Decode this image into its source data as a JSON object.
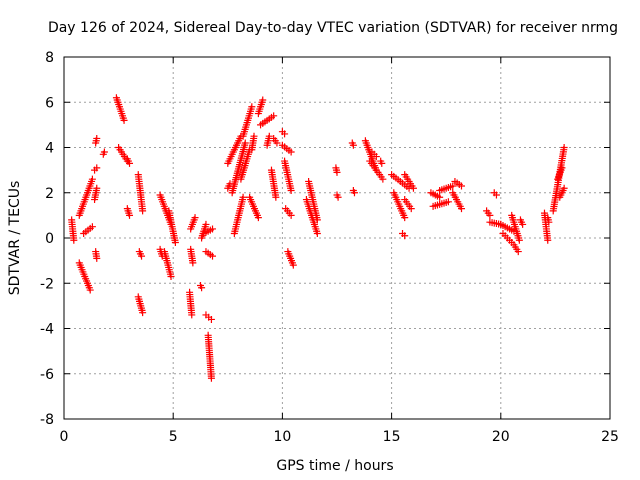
{
  "chart_data": {
    "type": "scatter",
    "title": "Day 126 of 2024, Sidereal Day-to-day VTEC variation (SDTVAR) for receiver nrmg",
    "xlabel": "GPS time / hours",
    "ylabel": "SDTVAR / TECUs",
    "xlim": [
      0,
      25
    ],
    "ylim": [
      -8,
      8
    ],
    "xticks": [
      0,
      5,
      10,
      15,
      20,
      25
    ],
    "yticks": [
      -8,
      -6,
      -4,
      -2,
      0,
      2,
      4,
      6,
      8
    ],
    "grid": true,
    "marker": "+",
    "color": "#ff0000",
    "series": [
      {
        "name": "SDTVAR",
        "tracks": [
          {
            "x": [
              0.35,
              0.45
            ],
            "y": [
              0.8,
              -0.1
            ]
          },
          {
            "x": [
              0.7,
              1.2
            ],
            "y": [
              -1.1,
              -2.3
            ]
          },
          {
            "x": [
              0.7,
              1.3
            ],
            "y": [
              1.0,
              2.6
            ]
          },
          {
            "x": [
              0.9,
              1.3
            ],
            "y": [
              0.2,
              0.5
            ]
          },
          {
            "x": [
              1.45,
              1.5
            ],
            "y": [
              -0.6,
              -0.9
            ]
          },
          {
            "x": [
              1.4,
              1.5
            ],
            "y": [
              1.7,
              2.2
            ]
          },
          {
            "x": [
              1.4,
              1.5
            ],
            "y": [
              3.0,
              3.1
            ]
          },
          {
            "x": [
              1.45,
              1.5
            ],
            "y": [
              4.2,
              4.4
            ]
          },
          {
            "x": [
              1.8,
              1.85
            ],
            "y": [
              3.7,
              3.8
            ]
          },
          {
            "x": [
              2.4,
              2.75
            ],
            "y": [
              6.2,
              5.2
            ]
          },
          {
            "x": [
              2.5,
              2.9
            ],
            "y": [
              4.0,
              3.4
            ]
          },
          {
            "x": [
              2.9,
              3.0
            ],
            "y": [
              3.5,
              3.3
            ]
          },
          {
            "x": [
              2.9,
              3.0
            ],
            "y": [
              1.3,
              1.0
            ]
          },
          {
            "x": [
              3.4,
              3.6
            ],
            "y": [
              -2.6,
              -3.3
            ]
          },
          {
            "x": [
              3.4,
              3.6
            ],
            "y": [
              2.8,
              1.2
            ]
          },
          {
            "x": [
              3.45,
              3.55
            ],
            "y": [
              -0.6,
              -0.8
            ]
          },
          {
            "x": [
              4.4,
              4.9
            ],
            "y": [
              1.9,
              0.6
            ]
          },
          {
            "x": [
              4.8,
              5.1
            ],
            "y": [
              1.2,
              -0.2
            ]
          },
          {
            "x": [
              4.4,
              4.5
            ],
            "y": [
              -0.5,
              -0.8
            ]
          },
          {
            "x": [
              4.6,
              4.9
            ],
            "y": [
              -0.6,
              -1.7
            ]
          },
          {
            "x": [
              5.8,
              5.9
            ],
            "y": [
              -0.5,
              -1.1
            ]
          },
          {
            "x": [
              5.75,
              5.85
            ],
            "y": [
              -2.4,
              -3.4
            ]
          },
          {
            "x": [
              5.8,
              6.0
            ],
            "y": [
              0.4,
              0.9
            ]
          },
          {
            "x": [
              6.25,
              6.3
            ],
            "y": [
              -2.1,
              -2.2
            ]
          },
          {
            "x": [
              6.3,
              6.5
            ],
            "y": [
              0.0,
              0.6
            ]
          },
          {
            "x": [
              6.4,
              6.8
            ],
            "y": [
              0.2,
              0.4
            ]
          },
          {
            "x": [
              6.5,
              6.8
            ],
            "y": [
              -0.6,
              -0.8
            ]
          },
          {
            "x": [
              6.5,
              6.75
            ],
            "y": [
              -3.4,
              -3.6
            ]
          },
          {
            "x": [
              6.6,
              6.75
            ],
            "y": [
              -4.3,
              -6.2
            ]
          },
          {
            "x": [
              7.5,
              8.1
            ],
            "y": [
              3.3,
              4.5
            ]
          },
          {
            "x": [
              7.5,
              7.6
            ],
            "y": [
              2.2,
              2.4
            ]
          },
          {
            "x": [
              7.7,
              8.3
            ],
            "y": [
              2.0,
              4.2
            ]
          },
          {
            "x": [
              7.8,
              8.2
            ],
            "y": [
              0.2,
              1.8
            ]
          },
          {
            "x": [
              8.2,
              8.6
            ],
            "y": [
              4.5,
              5.8
            ]
          },
          {
            "x": [
              8.1,
              8.5
            ],
            "y": [
              2.6,
              3.9
            ]
          },
          {
            "x": [
              8.5,
              8.9
            ],
            "y": [
              1.8,
              0.9
            ]
          },
          {
            "x": [
              8.6,
              8.7
            ],
            "y": [
              3.9,
              4.5
            ]
          },
          {
            "x": [
              8.9,
              9.1
            ],
            "y": [
              5.5,
              6.1
            ]
          },
          {
            "x": [
              9.0,
              9.6
            ],
            "y": [
              5.0,
              5.4
            ]
          },
          {
            "x": [
              9.3,
              9.4
            ],
            "y": [
              4.1,
              4.5
            ]
          },
          {
            "x": [
              9.6,
              9.75
            ],
            "y": [
              4.4,
              4.2
            ]
          },
          {
            "x": [
              9.5,
              9.7
            ],
            "y": [
              3.0,
              1.8
            ]
          },
          {
            "x": [
              10.0,
              10.1
            ],
            "y": [
              4.7,
              4.6
            ]
          },
          {
            "x": [
              10.0,
              10.4
            ],
            "y": [
              4.1,
              3.8
            ]
          },
          {
            "x": [
              10.1,
              10.4
            ],
            "y": [
              3.4,
              2.1
            ]
          },
          {
            "x": [
              10.15,
              10.4
            ],
            "y": [
              1.3,
              1.0
            ]
          },
          {
            "x": [
              10.25,
              10.5
            ],
            "y": [
              -0.6,
              -1.2
            ]
          },
          {
            "x": [
              11.1,
              11.6
            ],
            "y": [
              1.7,
              0.2
            ]
          },
          {
            "x": [
              11.2,
              11.6
            ],
            "y": [
              2.5,
              0.8
            ]
          },
          {
            "x": [
              12.45,
              12.5
            ],
            "y": [
              3.1,
              2.9
            ]
          },
          {
            "x": [
              12.5,
              12.55
            ],
            "y": [
              1.9,
              1.8
            ]
          },
          {
            "x": [
              13.2,
              13.25
            ],
            "y": [
              4.2,
              4.1
            ]
          },
          {
            "x": [
              13.25,
              13.3
            ],
            "y": [
              2.1,
              2.0
            ]
          },
          {
            "x": [
              13.8,
              14.3
            ],
            "y": [
              4.3,
              3.0
            ]
          },
          {
            "x": [
              14.0,
              14.6
            ],
            "y": [
              3.4,
              2.6
            ]
          },
          {
            "x": [
              14.1,
              14.3
            ],
            "y": [
              3.8,
              3.6
            ]
          },
          {
            "x": [
              14.5,
              14.55
            ],
            "y": [
              3.4,
              3.3
            ]
          },
          {
            "x": [
              15.0,
              15.8
            ],
            "y": [
              2.8,
              2.2
            ]
          },
          {
            "x": [
              15.1,
              15.6
            ],
            "y": [
              2.0,
              0.9
            ]
          },
          {
            "x": [
              15.5,
              15.6
            ],
            "y": [
              0.2,
              0.1
            ]
          },
          {
            "x": [
              15.6,
              16.0
            ],
            "y": [
              2.8,
              2.2
            ]
          },
          {
            "x": [
              15.6,
              15.9
            ],
            "y": [
              1.7,
              1.3
            ]
          },
          {
            "x": [
              16.8,
              17.2
            ],
            "y": [
              2.0,
              1.8
            ]
          },
          {
            "x": [
              16.9,
              17.6
            ],
            "y": [
              1.4,
              1.6
            ]
          },
          {
            "x": [
              17.2,
              17.8
            ],
            "y": [
              2.1,
              2.3
            ]
          },
          {
            "x": [
              17.8,
              18.2
            ],
            "y": [
              2.0,
              1.3
            ]
          },
          {
            "x": [
              17.9,
              18.2
            ],
            "y": [
              2.5,
              2.3
            ]
          },
          {
            "x": [
              19.35,
              19.5
            ],
            "y": [
              1.2,
              1.0
            ]
          },
          {
            "x": [
              19.5,
              20.0
            ],
            "y": [
              0.7,
              0.6
            ]
          },
          {
            "x": [
              19.7,
              19.8
            ],
            "y": [
              2.0,
              1.9
            ]
          },
          {
            "x": [
              20.0,
              20.6
            ],
            "y": [
              0.6,
              0.3
            ]
          },
          {
            "x": [
              20.1,
              20.5
            ],
            "y": [
              0.2,
              -0.2
            ]
          },
          {
            "x": [
              20.5,
              20.85
            ],
            "y": [
              1.0,
              -0.1
            ]
          },
          {
            "x": [
              20.6,
              20.8
            ],
            "y": [
              -0.3,
              -0.6
            ]
          },
          {
            "x": [
              20.9,
              21.0
            ],
            "y": [
              0.8,
              0.6
            ]
          },
          {
            "x": [
              22.0,
              22.15
            ],
            "y": [
              1.1,
              -0.1
            ]
          },
          {
            "x": [
              22.15,
              22.2
            ],
            "y": [
              0.9,
              0.7
            ]
          },
          {
            "x": [
              22.4,
              22.9
            ],
            "y": [
              1.2,
              4.0
            ]
          },
          {
            "x": [
              22.6,
              22.8
            ],
            "y": [
              2.6,
              3.1
            ]
          },
          {
            "x": [
              22.7,
              22.9
            ],
            "y": [
              1.8,
              2.2
            ]
          }
        ]
      }
    ]
  }
}
